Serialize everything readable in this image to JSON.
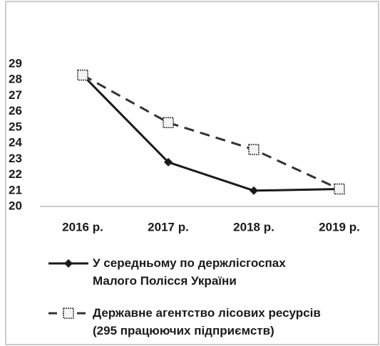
{
  "chart_data": {
    "type": "line",
    "categories": [
      "2016 р.",
      "2017 р.",
      "2018 р.",
      "2019 р."
    ],
    "series": [
      {
        "name": "У середньому по держлісгоспах\nМалого Полісся України",
        "color": "#1a1a1a",
        "dash": false,
        "marker": "diamond",
        "values": [
          28.3,
          22.8,
          21.0,
          21.1
        ]
      },
      {
        "name": "Державне агентство лісових ресурсів\n(295 працюючих підприємств)",
        "color": "#333333",
        "dash": true,
        "marker": "square",
        "values": [
          28.3,
          25.3,
          23.6,
          21.1
        ]
      }
    ],
    "ylim": [
      20,
      29
    ],
    "yticks": [
      20,
      21,
      22,
      23,
      24,
      25,
      26,
      27,
      28,
      29
    ],
    "grid": false
  }
}
